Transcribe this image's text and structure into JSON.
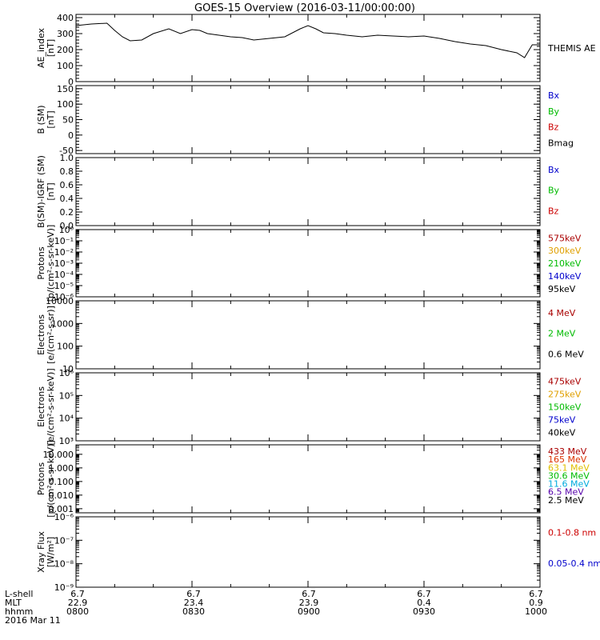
{
  "title": "GOES-15 Overview (2016-03-11/00:00:00)",
  "time_axis": {
    "rows": [
      {
        "label": "L-shell",
        "values": [
          "6.7",
          "6.7",
          "6.7",
          "6.7",
          "6.7"
        ]
      },
      {
        "label": "MLT",
        "values": [
          "22.9",
          "23.4",
          "23.9",
          "0.4",
          "0.9"
        ]
      },
      {
        "label": "hhmm",
        "values": [
          "0800",
          "0830",
          "0900",
          "0930",
          "1000"
        ]
      }
    ],
    "date": "2016 Mar 11"
  },
  "chart_data": [
    {
      "type": "line",
      "ylabel": "AE_index",
      "yunit": "[nT]",
      "ylim": [
        0,
        420
      ],
      "yscale": "linear",
      "ticks": [
        "0",
        "100",
        "200",
        "300",
        "400"
      ],
      "legend": [
        {
          "label": "THEMIS AE",
          "color": "#000000"
        }
      ],
      "x_range": [
        "08:00",
        "10:00"
      ],
      "series": [
        {
          "name": "THEMIS AE",
          "color": "#000000",
          "x": [
            "08:00",
            "08:04",
            "08:08",
            "08:10",
            "08:12",
            "08:14",
            "08:17",
            "08:20",
            "08:24",
            "08:27",
            "08:30",
            "08:32",
            "08:34",
            "08:37",
            "08:40",
            "08:43",
            "08:46",
            "08:50",
            "08:54",
            "08:58",
            "09:00",
            "09:02",
            "09:04",
            "09:07",
            "09:10",
            "09:14",
            "09:18",
            "09:22",
            "09:26",
            "09:30",
            "09:34",
            "09:38",
            "09:42",
            "09:46",
            "09:50",
            "09:54",
            "09:56",
            "09:58",
            "10:00"
          ],
          "values": [
            350,
            360,
            365,
            320,
            280,
            255,
            260,
            300,
            330,
            300,
            325,
            320,
            300,
            290,
            280,
            275,
            260,
            270,
            280,
            330,
            350,
            330,
            305,
            300,
            290,
            280,
            290,
            285,
            280,
            285,
            270,
            250,
            235,
            225,
            200,
            180,
            150,
            230,
            230
          ]
        }
      ]
    },
    {
      "type": "line",
      "ylabel": "B (SM)",
      "yunit": "[nT]",
      "ylim": [
        -60,
        160
      ],
      "yscale": "linear",
      "ticks": [
        "-50",
        "0",
        "50",
        "100",
        "150"
      ],
      "legend": [
        {
          "label": "Bx",
          "color": "#0000cc"
        },
        {
          "label": "By",
          "color": "#00bb00"
        },
        {
          "label": "Bz",
          "color": "#cc0000"
        },
        {
          "label": "Bmag",
          "color": "#000000"
        }
      ],
      "series": []
    },
    {
      "type": "line",
      "ylabel": "B(SM)-IGRF (SM)",
      "yunit": "[nT]",
      "ylim": [
        0,
        1
      ],
      "yscale": "linear",
      "ticks": [
        "0.0",
        "0.2",
        "0.4",
        "0.6",
        "0.8",
        "1.0"
      ],
      "legend": [
        {
          "label": "Bx",
          "color": "#0000cc"
        },
        {
          "label": "By",
          "color": "#00bb00"
        },
        {
          "label": "Bz",
          "color": "#cc0000"
        }
      ],
      "series": []
    },
    {
      "type": "line",
      "ylabel": "Protons",
      "yunit": "[p/(cm²-s-sr-keV)]",
      "ylim": [
        1e-06,
        1
      ],
      "yscale": "log",
      "ticks": [
        "10⁻⁶",
        "10⁻⁵",
        "10⁻⁴",
        "10⁻³",
        "10⁻²",
        "10⁻¹",
        "10⁰"
      ],
      "legend": [
        {
          "label": "575keV",
          "color": "#aa0000"
        },
        {
          "label": "300keV",
          "color": "#e0a000"
        },
        {
          "label": "210keV",
          "color": "#00bb00"
        },
        {
          "label": "140keV",
          "color": "#0000cc"
        },
        {
          "label": "95keV",
          "color": "#000000"
        }
      ],
      "series": []
    },
    {
      "type": "line",
      "ylabel": "Electrons",
      "yunit": "[e/(cm²-s-sr)]",
      "ylim": [
        10,
        10000
      ],
      "yscale": "log",
      "ticks": [
        "10",
        "100",
        "1000",
        "10000"
      ],
      "legend": [
        {
          "label": "4 MeV",
          "color": "#aa0000"
        },
        {
          "label": "2 MeV",
          "color": "#00bb00"
        },
        {
          "label": "0.6 MeV",
          "color": "#000000"
        }
      ],
      "series": []
    },
    {
      "type": "line",
      "ylabel": "Electrons",
      "yunit": "[e/(cm²-s-sr-keV)]",
      "ylim": [
        1000,
        1000000
      ],
      "yscale": "log",
      "ticks": [
        "10³",
        "10⁴",
        "10⁵",
        "10⁶"
      ],
      "legend": [
        {
          "label": "475keV",
          "color": "#aa0000"
        },
        {
          "label": "275keV",
          "color": "#e0a000"
        },
        {
          "label": "150keV",
          "color": "#00bb00"
        },
        {
          "label": "75keV",
          "color": "#0000cc"
        },
        {
          "label": "40keV",
          "color": "#000000"
        }
      ],
      "series": []
    },
    {
      "type": "line",
      "ylabel": "Protons",
      "yunit": "[p/(cm²-s-sr-keV)]",
      "ylim": [
        0.0005,
        50
      ],
      "yscale": "log",
      "ticks": [
        "0.001",
        "0.010",
        "0.100",
        "1.000",
        "10.000"
      ],
      "legend": [
        {
          "label": "433 MeV",
          "color": "#aa0000"
        },
        {
          "label": "165 MeV",
          "color": "#dd3300"
        },
        {
          "label": "63.1 MeV",
          "color": "#e0c000"
        },
        {
          "label": "30.6 MeV",
          "color": "#00bb00"
        },
        {
          "label": "11.6 MeV",
          "color": "#00aadd"
        },
        {
          "label": "6.5 MeV",
          "color": "#5500aa"
        },
        {
          "label": "2.5 MeV",
          "color": "#000000"
        }
      ],
      "series": []
    },
    {
      "type": "line",
      "ylabel": "Xray Flux",
      "yunit": "[W/m²]",
      "ylim": [
        1e-09,
        1e-06
      ],
      "yscale": "log",
      "ticks": [
        "10⁻⁹",
        "10⁻⁸",
        "10⁻⁷",
        "10⁻⁶"
      ],
      "legend": [
        {
          "label": "0.1-0.8 nm",
          "color": "#cc0000"
        },
        {
          "label": "0.05-0.4 nm",
          "color": "#0000cc"
        }
      ],
      "series": []
    }
  ]
}
